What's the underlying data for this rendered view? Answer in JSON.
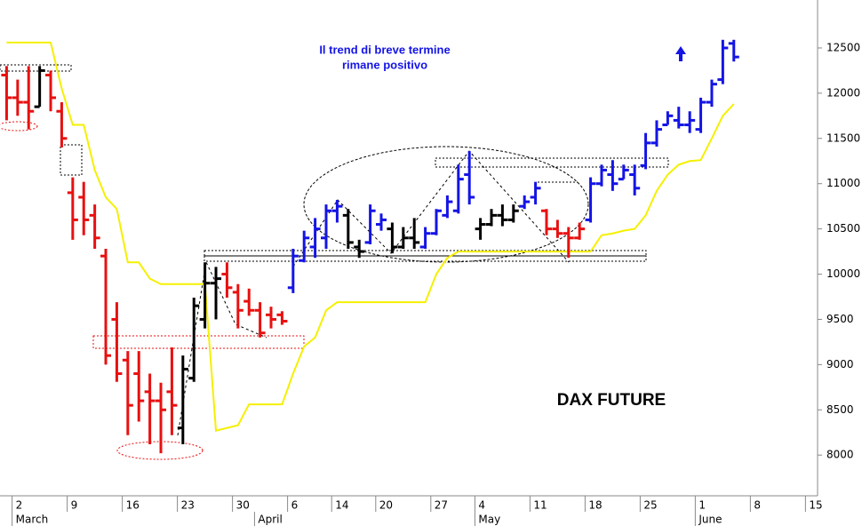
{
  "chart_data": {
    "type": "ohlc",
    "annotations": [
      "Il trend di breve termine",
      "rimane positivo"
    ],
    "label": "DAX FUTURE",
    "x": [
      -1,
      0,
      1,
      2,
      3,
      4,
      5,
      6,
      7,
      8,
      9,
      10,
      11,
      12,
      13,
      14,
      15,
      16,
      17,
      18,
      19,
      20,
      21,
      22,
      23,
      24,
      25,
      26,
      27,
      28,
      29,
      30,
      31,
      32,
      33,
      34,
      35,
      36,
      37,
      38,
      39,
      40,
      41,
      42,
      43,
      44,
      45,
      46,
      47,
      48,
      49,
      50,
      51,
      52,
      53,
      54,
      55,
      56,
      57,
      58,
      59,
      60,
      61,
      62,
      63,
      64,
      65
    ],
    "open": [
      12200,
      11950,
      11900,
      11850,
      12200,
      11800,
      10900,
      10850,
      10650,
      10200,
      9500,
      9050,
      8900,
      8700,
      8600,
      8700,
      8300,
      8850,
      9500,
      9900,
      10000,
      9800,
      9700,
      9600,
      9550,
      9550,
      9850,
      10150,
      10300,
      10400,
      10700,
      10650,
      10300,
      10350,
      10550,
      10500,
      10300,
      10400,
      10300,
      10450,
      10650,
      10700,
      11100,
      10500,
      10550,
      10650,
      10600,
      10750,
      10850,
      10700,
      10500,
      10450,
      10400,
      10600,
      11000,
      11100,
      11050,
      11100,
      11200,
      11450,
      11650,
      11700,
      11650,
      11600,
      11900,
      12150,
      12550
    ],
    "high": [
      12300,
      12150,
      12300,
      12300,
      12250,
      11900,
      11070,
      11020,
      10770,
      10280,
      9690,
      9150,
      9150,
      8900,
      8800,
      9190,
      9100,
      9740,
      10130,
      10080,
      10130,
      9890,
      9840,
      9690,
      9640,
      9590,
      10280,
      10480,
      10620,
      10770,
      10820,
      10720,
      10380,
      10770,
      10670,
      10570,
      10520,
      10620,
      10520,
      10720,
      10870,
      11210,
      11360,
      10620,
      10720,
      10770,
      10770,
      10870,
      11020,
      10720,
      10600,
      10520,
      10570,
      11070,
      11210,
      11260,
      11210,
      11210,
      11560,
      11700,
      11800,
      11850,
      11800,
      11950,
      12150,
      12590,
      12590
    ],
    "low": [
      11700,
      11750,
      11600,
      11850,
      11800,
      11400,
      10380,
      10430,
      10280,
      9000,
      8810,
      8220,
      8370,
      8120,
      8020,
      8220,
      8120,
      8810,
      9400,
      9500,
      9740,
      9400,
      9540,
      9300,
      9400,
      9440,
      9790,
      10130,
      10180,
      10280,
      10570,
      10280,
      10180,
      10330,
      10480,
      10230,
      10280,
      10280,
      10280,
      10430,
      10620,
      10670,
      10770,
      10380,
      10530,
      10530,
      10570,
      10720,
      10770,
      10430,
      10400,
      10180,
      10380,
      10570,
      10970,
      10920,
      11050,
      10870,
      11160,
      11410,
      11650,
      11610,
      11560,
      11560,
      11850,
      12100,
      12350
    ],
    "close": [
      11950,
      11900,
      11800,
      12250,
      11950,
      11500,
      10600,
      10600,
      10400,
      9100,
      8900,
      8550,
      8600,
      8600,
      8500,
      8550,
      8950,
      9650,
      9900,
      9950,
      9850,
      9600,
      9600,
      9350,
      9500,
      9480,
      10200,
      10400,
      10500,
      10700,
      10750,
      10350,
      10250,
      10700,
      10600,
      10300,
      10400,
      10350,
      10450,
      10700,
      10800,
      11050,
      10850,
      10550,
      10650,
      10600,
      10700,
      10800,
      10950,
      10500,
      10450,
      10400,
      10500,
      11000,
      11150,
      11000,
      11150,
      10950,
      11450,
      11600,
      11750,
      11650,
      11700,
      11900,
      12100,
      12500,
      12400
    ],
    "bar_colors": [
      "#e81010",
      "#e81010",
      "#e81010",
      "#000000",
      "#e81010",
      "#e81010",
      "#e81010",
      "#e81010",
      "#e81010",
      "#e81010",
      "#e81010",
      "#e81010",
      "#e81010",
      "#e81010",
      "#e81010",
      "#e81010",
      "#000000",
      "#000000",
      "#000000",
      "#000000",
      "#e81010",
      "#e81010",
      "#e81010",
      "#e81010",
      "#e81010",
      "#e81010",
      "#1414e6",
      "#1414e6",
      "#1414e6",
      "#1414e6",
      "#1414e6",
      "#000000",
      "#000000",
      "#1414e6",
      "#1414e6",
      "#000000",
      "#000000",
      "#000000",
      "#1414e6",
      "#1414e6",
      "#1414e6",
      "#1414e6",
      "#1414e6",
      "#000000",
      "#000000",
      "#000000",
      "#000000",
      "#1414e6",
      "#1414e6",
      "#e81010",
      "#e81010",
      "#e81010",
      "#e81010",
      "#1414e6",
      "#1414e6",
      "#1414e6",
      "#1414e6",
      "#1414e6",
      "#1414e6",
      "#1414e6",
      "#1414e6",
      "#1414e6",
      "#1414e6",
      "#1414e6",
      "#1414e6",
      "#1414e6",
      "#1414e6"
    ],
    "line": {
      "color": "#f5f000",
      "values": [
        12560,
        12560,
        12560,
        12560,
        12560,
        12050,
        11650,
        11650,
        11150,
        10850,
        10720,
        10130,
        10130,
        9950,
        9890,
        9890,
        9890,
        9890,
        9890,
        8270,
        8300,
        8330,
        8560,
        8560,
        8560,
        8560,
        8900,
        9200,
        9300,
        9600,
        9690,
        9690,
        9690,
        9690,
        9690,
        9690,
        9690,
        9690,
        9690,
        10000,
        10180,
        10250,
        10250,
        10250,
        10250,
        10250,
        10250,
        10250,
        10250,
        10250,
        10250,
        10250,
        10250,
        10250,
        10430,
        10450,
        10480,
        10500,
        10650,
        10920,
        11100,
        11210,
        11250,
        11260,
        11500,
        11750,
        11880
      ]
    },
    "xlim": [
      -1.6,
      72.6
    ],
    "ylim": [
      7550,
      13030
    ],
    "yticks": [
      8000,
      8500,
      9000,
      9500,
      10000,
      10500,
      11000,
      11500,
      12000,
      12500
    ],
    "xticks": [
      {
        "value": 0,
        "label": "2"
      },
      {
        "value": 5,
        "label": "9"
      },
      {
        "value": 10,
        "label": "16"
      },
      {
        "value": 15,
        "label": "23"
      },
      {
        "value": 20,
        "label": "30"
      },
      {
        "value": 25,
        "label": "6"
      },
      {
        "value": 29,
        "label": "14"
      },
      {
        "value": 33,
        "label": "20"
      },
      {
        "value": 38,
        "label": "27"
      },
      {
        "value": 42,
        "label": "4"
      },
      {
        "value": 47,
        "label": "11"
      },
      {
        "value": 52,
        "label": "18"
      },
      {
        "value": 57,
        "label": "25"
      },
      {
        "value": 62,
        "label": "1"
      },
      {
        "value": 67,
        "label": "8"
      },
      {
        "value": 72,
        "label": "15"
      }
    ],
    "month_ticks": [
      {
        "value": 0,
        "label": "March"
      },
      {
        "value": 22,
        "label": "April"
      },
      {
        "value": 42,
        "label": "May"
      },
      {
        "value": 62,
        "label": "June"
      }
    ]
  }
}
